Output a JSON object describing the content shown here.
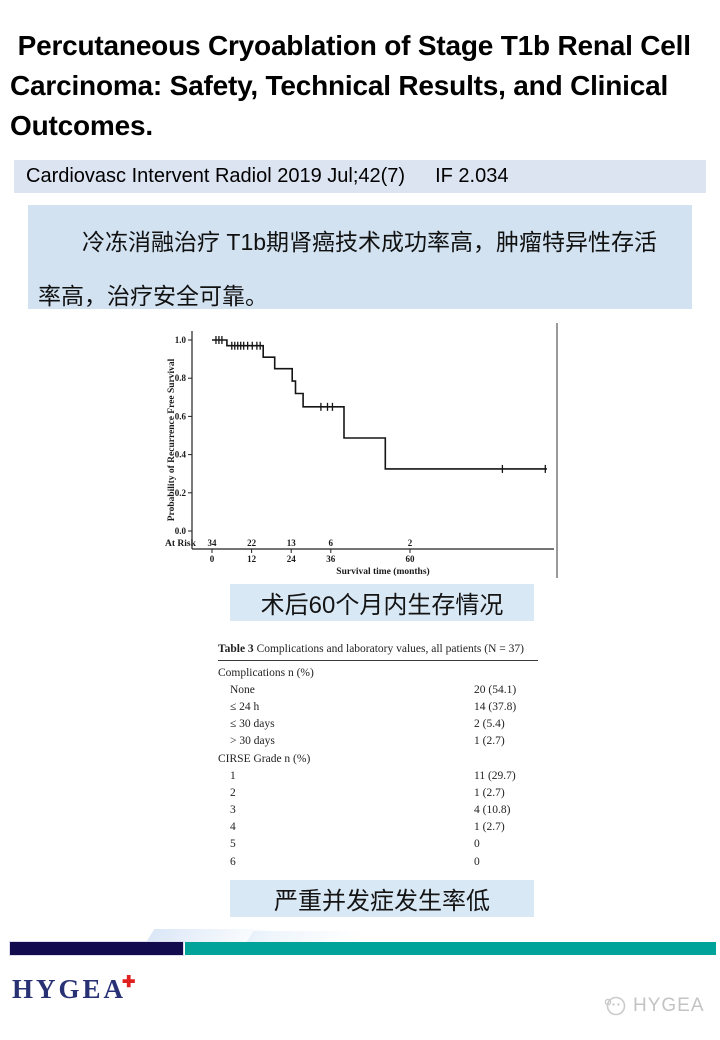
{
  "title": {
    "text": " Percutaneous Cryoablation of Stage T1b Renal Cell Carcinoma: Safety, Technical Results, and Clinical Outcomes."
  },
  "citation": {
    "journal": "Cardiovasc Intervent Radiol 2019 Jul;42(7)",
    "impact": "IF 2.034",
    "bg": "#dce3f1"
  },
  "summary": {
    "text": "冷冻消融治疗 T1b期肾癌技术成功率高，肿瘤特异性存活率高，治疗安全可靠。",
    "bg": "#d2e2f1"
  },
  "chart_caption": {
    "text": "术后60个月内生存情况",
    "bg": "#d9e8f5"
  },
  "table_caption": {
    "text": "严重并发症发生率低",
    "bg": "#d9e8f5"
  },
  "chart_data": {
    "type": "line",
    "subtype": "kaplan-meier-step",
    "title": "",
    "xlabel": "Survival time (months)",
    "ylabel": "Probability of Recurrence Free Survival",
    "xticks": [
      0,
      12,
      24,
      36,
      60
    ],
    "yticks": [
      0.0,
      0.2,
      0.4,
      0.6,
      0.8,
      1.0
    ],
    "xlim": [
      0,
      101.5
    ],
    "ylim": [
      0.0,
      1.0
    ],
    "grid": false,
    "legend": false,
    "steps": [
      [
        0,
        1.0
      ],
      [
        4.5,
        0.97
      ],
      [
        15.5,
        0.91
      ],
      [
        19,
        0.85
      ],
      [
        24.3,
        0.785
      ],
      [
        25.3,
        0.72
      ],
      [
        27.6,
        0.65
      ],
      [
        40,
        0.487
      ],
      [
        52.5,
        0.325
      ]
    ],
    "censors": [
      [
        1.2,
        1.0
      ],
      [
        2.1,
        1.0
      ],
      [
        3.0,
        1.0
      ],
      [
        6,
        0.97
      ],
      [
        6.9,
        0.97
      ],
      [
        7.8,
        0.97
      ],
      [
        8.7,
        0.97
      ],
      [
        9.6,
        0.97
      ],
      [
        10.8,
        0.97
      ],
      [
        12.2,
        0.97
      ],
      [
        13.6,
        0.97
      ],
      [
        14.6,
        0.97
      ],
      [
        33,
        0.65
      ],
      [
        35,
        0.65
      ],
      [
        36.5,
        0.65
      ],
      [
        88,
        0.325
      ],
      [
        101,
        0.325
      ]
    ],
    "at_risk_label": "At Risk",
    "at_risk": [
      [
        0,
        34
      ],
      [
        12,
        22
      ],
      [
        24,
        13
      ],
      [
        36,
        6
      ],
      [
        60,
        2
      ]
    ]
  },
  "table": {
    "title_bold": "Table 3",
    "title_rest": "  Complications and laboratory values, all patients (N = 37)",
    "rows": [
      {
        "label": "Complications n (%)",
        "value": "",
        "indent": false
      },
      {
        "label": "None",
        "value": "20 (54.1)",
        "indent": true
      },
      {
        "label": "≤ 24 h",
        "value": "14 (37.8)",
        "indent": true
      },
      {
        "label": "≤ 30 days",
        "value": "2 (5.4)",
        "indent": true
      },
      {
        "label": "> 30 days",
        "value": "1 (2.7)",
        "indent": true
      },
      {
        "label": "CIRSE Grade n (%)",
        "value": "",
        "indent": false
      },
      {
        "label": "1",
        "value": "11 (29.7)",
        "indent": true
      },
      {
        "label": "2",
        "value": "1 (2.7)",
        "indent": true
      },
      {
        "label": "3",
        "value": "4 (10.8)",
        "indent": true
      },
      {
        "label": "4",
        "value": "1 (2.7)",
        "indent": true
      },
      {
        "label": "5",
        "value": "0",
        "indent": true
      },
      {
        "label": "6",
        "value": "0",
        "indent": true
      }
    ]
  },
  "footer": {
    "logo_text": "HYGEA",
    "logo_cross": "✚",
    "watermark_text": "HYGEA",
    "colors": {
      "navy_bar": "#120c4e",
      "teal_bar": "#00a39a",
      "logo_navy": "#283173",
      "cross_red": "#e01f1f",
      "watermark_gray": "#bdbdbd"
    }
  }
}
